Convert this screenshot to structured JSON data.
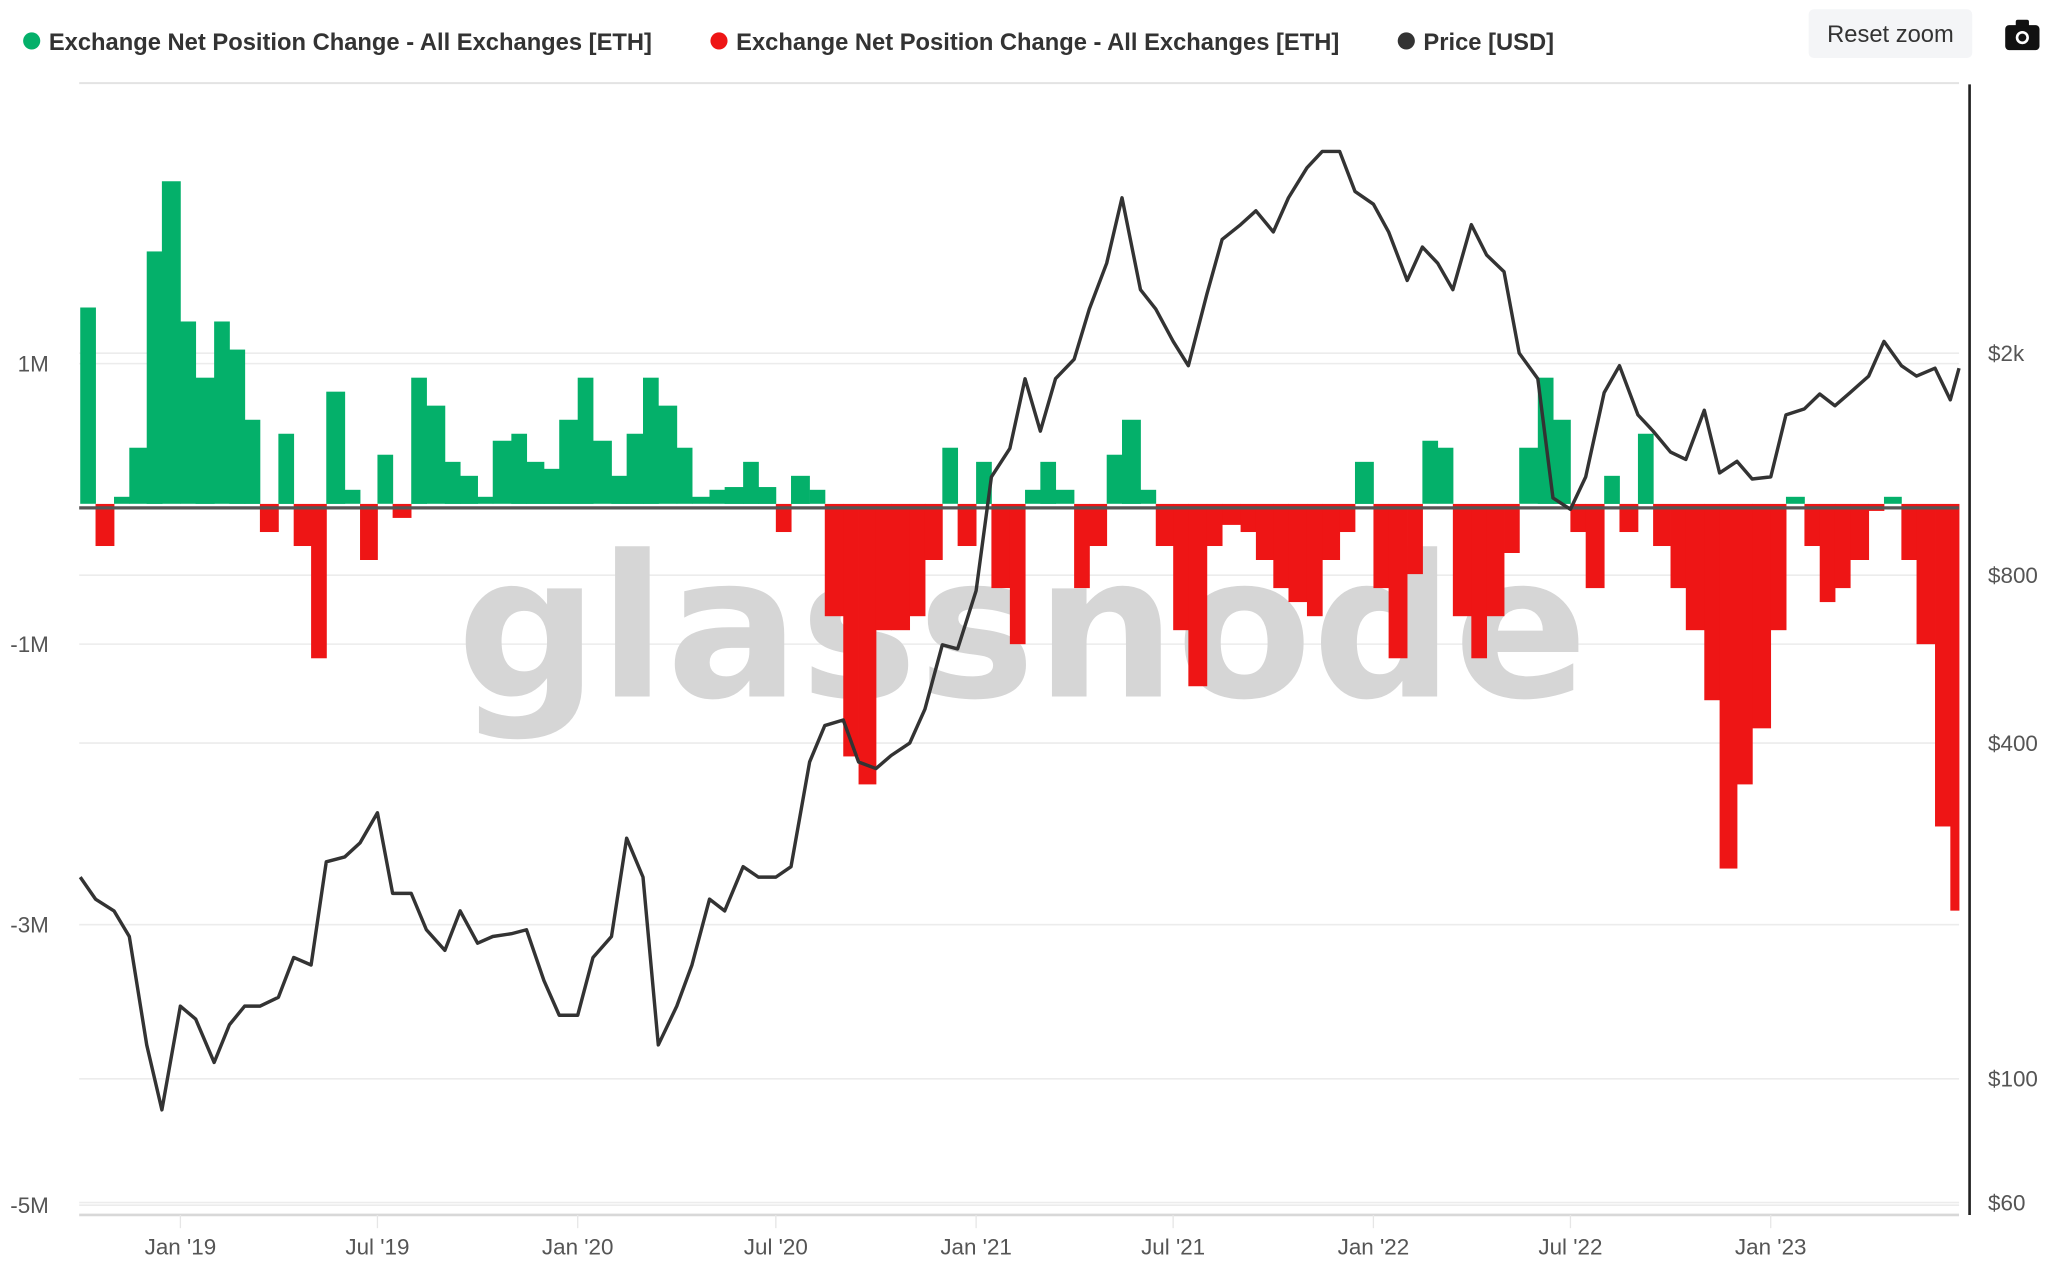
{
  "legend": {
    "items": [
      {
        "label": "Exchange Net Position Change - All Exchanges [ETH]",
        "color": "#04b06a"
      },
      {
        "label": "Exchange Net Position Change - All Exchanges [ETH]",
        "color": "#ee1515"
      },
      {
        "label": "Price [USD]",
        "color": "#333333"
      }
    ]
  },
  "toolbar": {
    "reset_zoom": "Reset zoom",
    "export_icon": "camera-icon"
  },
  "watermark": "glassnode",
  "chart_data": {
    "type": "bar+line",
    "grid": true,
    "legend_position": "top-left",
    "x_axis": {
      "range": [
        "2018-09-30",
        "2023-06-23"
      ],
      "ticks": [
        {
          "date": "2019-01-01",
          "label": "Jan '19"
        },
        {
          "date": "2019-07-01",
          "label": "Jul '19"
        },
        {
          "date": "2020-01-01",
          "label": "Jan '20"
        },
        {
          "date": "2020-07-01",
          "label": "Jul '20"
        },
        {
          "date": "2021-01-01",
          "label": "Jan '21"
        },
        {
          "date": "2021-07-01",
          "label": "Jul '21"
        },
        {
          "date": "2022-01-01",
          "label": "Jan '22"
        },
        {
          "date": "2022-07-01",
          "label": "Jul '22"
        },
        {
          "date": "2023-01-01",
          "label": "Jan '23"
        }
      ]
    },
    "y_left": {
      "range": [
        -5070000,
        3000000
      ],
      "ticks": [
        {
          "value": 1000000,
          "label": "1M"
        },
        {
          "value": -1000000,
          "label": "-1M"
        },
        {
          "value": -3000000,
          "label": "-3M"
        },
        {
          "value": -5000000,
          "label": "-5M"
        }
      ]
    },
    "y_right": {
      "scale": "log",
      "range": [
        57,
        6100
      ],
      "ticks": [
        {
          "value": 2000,
          "label": "$2k"
        },
        {
          "value": 800,
          "label": "$800"
        },
        {
          "value": 400,
          "label": "$400"
        },
        {
          "value": 100,
          "label": "$100"
        },
        {
          "value": 60,
          "label": "$60"
        }
      ]
    },
    "net_position_change": {
      "name": "Exchange Net Position Change - All Exchanges [ETH]",
      "positive_color": "#04b06a",
      "negative_color": "#ee1515",
      "dates": [
        "2018-10-01",
        "2018-10-15",
        "2018-11-01",
        "2018-11-15",
        "2018-12-01",
        "2018-12-15",
        "2019-01-01",
        "2019-01-15",
        "2019-02-01",
        "2019-02-15",
        "2019-03-01",
        "2019-03-15",
        "2019-04-01",
        "2019-04-15",
        "2019-05-01",
        "2019-05-15",
        "2019-06-01",
        "2019-06-15",
        "2019-07-01",
        "2019-07-15",
        "2019-08-01",
        "2019-08-15",
        "2019-09-01",
        "2019-09-15",
        "2019-10-01",
        "2019-10-15",
        "2019-11-01",
        "2019-11-15",
        "2019-12-01",
        "2019-12-15",
        "2020-01-01",
        "2020-01-15",
        "2020-02-01",
        "2020-02-15",
        "2020-03-01",
        "2020-03-15",
        "2020-04-01",
        "2020-04-15",
        "2020-05-01",
        "2020-05-15",
        "2020-06-01",
        "2020-06-15",
        "2020-07-01",
        "2020-07-15",
        "2020-08-01",
        "2020-08-15",
        "2020-09-01",
        "2020-09-15",
        "2020-10-01",
        "2020-10-15",
        "2020-11-01",
        "2020-11-15",
        "2020-12-01",
        "2020-12-15",
        "2021-01-01",
        "2021-01-15",
        "2021-02-01",
        "2021-02-15",
        "2021-03-01",
        "2021-03-15",
        "2021-04-01",
        "2021-04-15",
        "2021-05-01",
        "2021-05-15",
        "2021-06-01",
        "2021-06-15",
        "2021-07-01",
        "2021-07-15",
        "2021-08-01",
        "2021-08-15",
        "2021-09-01",
        "2021-09-15",
        "2021-10-01",
        "2021-10-15",
        "2021-11-01",
        "2021-11-15",
        "2021-12-01",
        "2021-12-15",
        "2022-01-01",
        "2022-01-15",
        "2022-02-01",
        "2022-02-15",
        "2022-03-01",
        "2022-03-15",
        "2022-04-01",
        "2022-04-15",
        "2022-05-01",
        "2022-05-15",
        "2022-06-01",
        "2022-06-15",
        "2022-07-01",
        "2022-07-15",
        "2022-08-01",
        "2022-08-15",
        "2022-09-01",
        "2022-09-15",
        "2022-10-01",
        "2022-10-15",
        "2022-11-01",
        "2022-11-15",
        "2022-12-01",
        "2022-12-15",
        "2023-01-01",
        "2023-01-15",
        "2023-02-01",
        "2023-02-15",
        "2023-03-01",
        "2023-03-15",
        "2023-04-01",
        "2023-04-15",
        "2023-05-01",
        "2023-05-15",
        "2023-06-01",
        "2023-06-15"
      ],
      "values": [
        1400000,
        -300000,
        50000,
        400000,
        1800000,
        2300000,
        1300000,
        900000,
        1300000,
        1100000,
        600000,
        -200000,
        500000,
        -300000,
        -1100000,
        800000,
        100000,
        -400000,
        350000,
        -100000,
        900000,
        700000,
        300000,
        200000,
        50000,
        450000,
        500000,
        300000,
        250000,
        600000,
        900000,
        450000,
        200000,
        500000,
        900000,
        700000,
        400000,
        50000,
        100000,
        120000,
        300000,
        120000,
        -200000,
        200000,
        100000,
        -800000,
        -1800000,
        -2000000,
        -900000,
        -900000,
        -800000,
        -400000,
        400000,
        -300000,
        300000,
        -600000,
        -1000000,
        100000,
        300000,
        100000,
        -600000,
        -300000,
        350000,
        600000,
        100000,
        -300000,
        -900000,
        -1300000,
        -300000,
        -150000,
        -200000,
        -400000,
        -600000,
        -700000,
        -800000,
        -400000,
        -200000,
        300000,
        -600000,
        -1100000,
        -500000,
        450000,
        400000,
        -800000,
        -1100000,
        -800000,
        -350000,
        400000,
        900000,
        600000,
        -200000,
        -600000,
        200000,
        -200000,
        500000,
        -300000,
        -600000,
        -900000,
        -1400000,
        -2600000,
        -2000000,
        -1600000,
        -900000,
        50000,
        -300000,
        -700000,
        -600000,
        -400000,
        -50000,
        50000,
        -400000,
        -1000000,
        -2300000,
        -2900000
      ]
    },
    "price": {
      "name": "Price [USD]",
      "dates": [
        "2018-10-01",
        "2018-10-15",
        "2018-11-01",
        "2018-11-15",
        "2018-12-01",
        "2018-12-15",
        "2019-01-01",
        "2019-01-15",
        "2019-02-01",
        "2019-02-15",
        "2019-03-01",
        "2019-03-15",
        "2019-04-01",
        "2019-04-15",
        "2019-05-01",
        "2019-05-15",
        "2019-06-01",
        "2019-06-15",
        "2019-07-01",
        "2019-07-15",
        "2019-08-01",
        "2019-08-15",
        "2019-09-01",
        "2019-09-15",
        "2019-10-01",
        "2019-10-15",
        "2019-11-01",
        "2019-11-15",
        "2019-12-01",
        "2019-12-15",
        "2020-01-01",
        "2020-01-15",
        "2020-02-01",
        "2020-02-15",
        "2020-03-01",
        "2020-03-15",
        "2020-04-01",
        "2020-04-15",
        "2020-05-01",
        "2020-05-15",
        "2020-06-01",
        "2020-06-15",
        "2020-07-01",
        "2020-07-15",
        "2020-08-01",
        "2020-08-15",
        "2020-09-01",
        "2020-09-15",
        "2020-10-01",
        "2020-10-15",
        "2020-11-01",
        "2020-11-15",
        "2020-12-01",
        "2020-12-15",
        "2021-01-01",
        "2021-01-15",
        "2021-02-01",
        "2021-02-15",
        "2021-03-01",
        "2021-03-15",
        "2021-04-01",
        "2021-04-15",
        "2021-05-01",
        "2021-05-15",
        "2021-06-01",
        "2021-06-15",
        "2021-07-01",
        "2021-07-15",
        "2021-08-01",
        "2021-08-15",
        "2021-09-01",
        "2021-09-15",
        "2021-10-01",
        "2021-10-15",
        "2021-11-01",
        "2021-11-15",
        "2021-12-01",
        "2021-12-15",
        "2022-01-01",
        "2022-01-15",
        "2022-02-01",
        "2022-02-15",
        "2022-03-01",
        "2022-03-15",
        "2022-04-01",
        "2022-04-15",
        "2022-05-01",
        "2022-05-15",
        "2022-06-01",
        "2022-06-15",
        "2022-07-01",
        "2022-07-15",
        "2022-08-01",
        "2022-08-15",
        "2022-09-01",
        "2022-09-15",
        "2022-10-01",
        "2022-10-15",
        "2022-11-01",
        "2022-11-15",
        "2022-12-01",
        "2022-12-15",
        "2023-01-01",
        "2023-01-15",
        "2023-02-01",
        "2023-02-15",
        "2023-03-01",
        "2023-03-15",
        "2023-04-01",
        "2023-04-15",
        "2023-05-01",
        "2023-05-15",
        "2023-06-01",
        "2023-06-15",
        "2023-06-23"
      ],
      "values": [
        230,
        210,
        200,
        180,
        115,
        88,
        135,
        128,
        107,
        125,
        135,
        135,
        140,
        165,
        160,
        245,
        250,
        265,
        300,
        215,
        215,
        185,
        170,
        200,
        175,
        180,
        182,
        185,
        150,
        130,
        130,
        165,
        180,
        270,
        230,
        115,
        135,
        160,
        210,
        200,
        240,
        230,
        230,
        240,
        370,
        430,
        440,
        370,
        360,
        380,
        400,
        460,
        600,
        590,
        750,
        1200,
        1350,
        1800,
        1450,
        1800,
        1950,
        2400,
        2900,
        3800,
        2600,
        2400,
        2100,
        1900,
        2550,
        3200,
        3400,
        3600,
        3300,
        3800,
        4300,
        4600,
        4600,
        3900,
        3700,
        3300,
        2700,
        3100,
        2900,
        2600,
        3400,
        3000,
        2800,
        2000,
        1800,
        1100,
        1050,
        1200,
        1700,
        1900,
        1550,
        1450,
        1330,
        1290,
        1580,
        1220,
        1280,
        1190,
        1200,
        1550,
        1590,
        1690,
        1610,
        1700,
        1820,
        2100,
        1900,
        1820,
        1880,
        1650,
        1880
      ]
    }
  }
}
